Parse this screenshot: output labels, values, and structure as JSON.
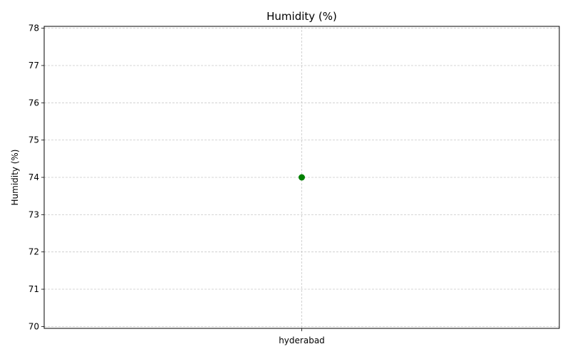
{
  "chart_data": {
    "type": "scatter",
    "title": "Humidity (%)",
    "xlabel": "",
    "ylabel": "Humidity (%)",
    "categories": [
      "hyderabad"
    ],
    "series": [
      {
        "values": [
          74
        ]
      }
    ],
    "ylim": [
      69.95,
      78.05
    ],
    "yticks": [
      70,
      71,
      72,
      73,
      74,
      75,
      76,
      77,
      78
    ],
    "grid": true,
    "grid_style": "dashed",
    "marker_color": "#008000"
  }
}
